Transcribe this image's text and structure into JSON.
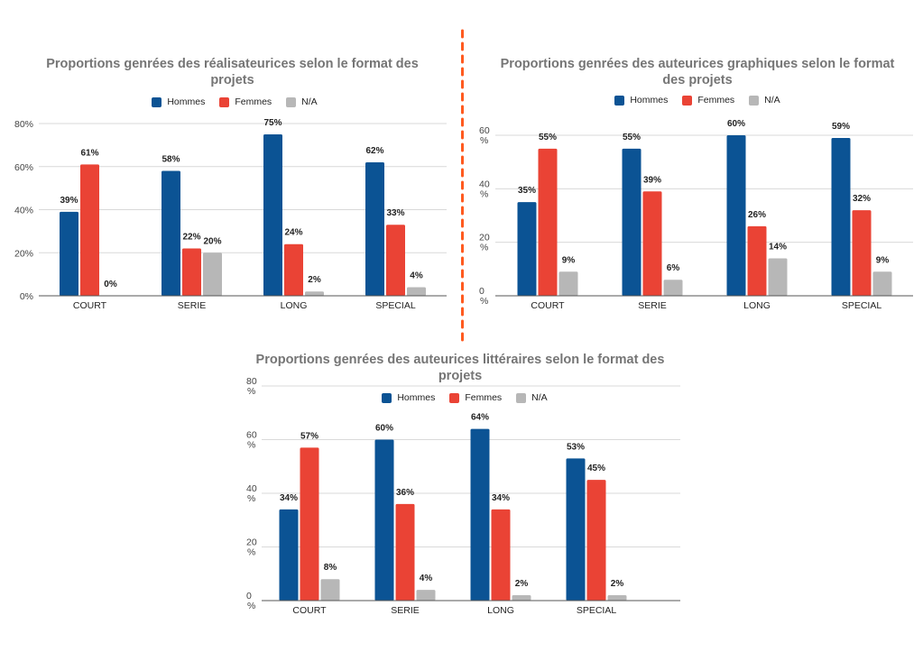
{
  "colors": {
    "Hommes": "#0b5394",
    "Femmes": "#ea4335",
    "N/A": "#b7b7b7",
    "divider": "#ff5a1f"
  },
  "chart_data": [
    {
      "type": "bar",
      "title": "Proportions genrées des réalisateurices selon le format des projets",
      "title_lines": [
        "Proportions genrées des réalisateurices selon le format des",
        "projets"
      ],
      "categories": [
        "COURT",
        "SERIE",
        "LONG",
        "SPECIAL"
      ],
      "series": [
        {
          "name": "Hommes",
          "values": [
            39,
            58,
            75,
            62
          ]
        },
        {
          "name": "Femmes",
          "values": [
            61,
            22,
            24,
            33
          ]
        },
        {
          "name": "N/A",
          "values": [
            0,
            20,
            2,
            4
          ]
        }
      ],
      "data_labels": [
        [
          "39%",
          "58%",
          "75%",
          "62%"
        ],
        [
          "61%",
          "22%",
          "24%",
          "33%"
        ],
        [
          "0%",
          "20%",
          "2%",
          "4%"
        ]
      ],
      "yticks": [
        "0%",
        "20%",
        "40%",
        "60%",
        "80%"
      ],
      "ylim": [
        0,
        80
      ],
      "xlabel": "",
      "ylabel": "",
      "legend": "top",
      "grid": true
    },
    {
      "type": "bar",
      "title": "Proportions genrées des auteurices graphiques selon le format des projets",
      "title_lines": [
        "Proportions genrées des auteurices graphiques selon le format",
        "des projets"
      ],
      "categories": [
        "COURT",
        "SERIE",
        "LONG",
        "SPECIAL"
      ],
      "series": [
        {
          "name": "Hommes",
          "values": [
            35,
            55,
            60,
            59
          ]
        },
        {
          "name": "Femmes",
          "values": [
            55,
            39,
            26,
            32
          ]
        },
        {
          "name": "N/A",
          "values": [
            9,
            6,
            14,
            9
          ]
        }
      ],
      "data_labels": [
        [
          "35%",
          "55%",
          "60%",
          "59%"
        ],
        [
          "55%",
          "39%",
          "26%",
          "32%"
        ],
        [
          "9%",
          "6%",
          "14%",
          "9%"
        ]
      ],
      "yticks": [
        "0\n%",
        "20\n%",
        "40\n%",
        "60\n%"
      ],
      "ylim": [
        0,
        60
      ],
      "xlabel": "",
      "ylabel": "",
      "legend": "top",
      "grid": true
    },
    {
      "type": "bar",
      "title": "Proportions genrées des auteurices littéraires selon le format des projets",
      "title_lines": [
        "Proportions genrées des auteurices littéraires selon le format des",
        "projets"
      ],
      "categories": [
        "COURT",
        "SERIE",
        "LONG",
        "SPECIAL"
      ],
      "series": [
        {
          "name": "Hommes",
          "values": [
            34,
            60,
            64,
            53
          ]
        },
        {
          "name": "Femmes",
          "values": [
            57,
            36,
            34,
            45
          ]
        },
        {
          "name": "N/A",
          "values": [
            8,
            4,
            2,
            2
          ]
        }
      ],
      "data_labels": [
        [
          "34%",
          "60%",
          "64%",
          "53%"
        ],
        [
          "57%",
          "36%",
          "34%",
          "45%"
        ],
        [
          "8%",
          "4%",
          "2%",
          "2%"
        ]
      ],
      "yticks": [
        "0\n%",
        "20\n%",
        "40\n%",
        "60\n%",
        "80\n%"
      ],
      "ylim": [
        0,
        80
      ],
      "xlabel": "",
      "ylabel": "",
      "legend": "top",
      "grid": true
    }
  ]
}
